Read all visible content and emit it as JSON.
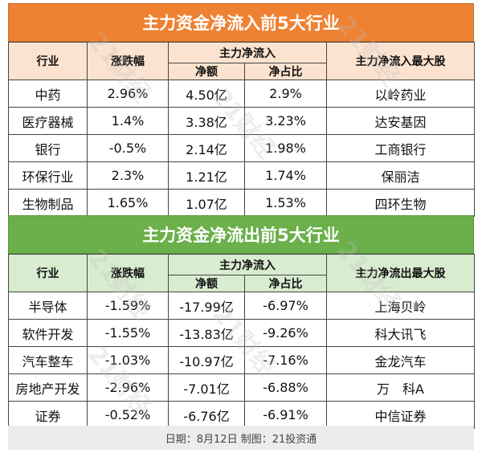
{
  "inflow": {
    "title": "主力资金净流入前5大行业",
    "headers": {
      "industry": "行业",
      "change": "涨跌幅",
      "netflow_group": "主力净流入",
      "amount": "净额",
      "ratio": "净占比",
      "top_stock": "主力净流入最大股"
    },
    "rows": [
      {
        "industry": "中药",
        "change": "2.96%",
        "amount": "4.50亿",
        "ratio": "2.9%",
        "stock": "以岭药业"
      },
      {
        "industry": "医疗器械",
        "change": "1.4%",
        "amount": "3.38亿",
        "ratio": "3.23%",
        "stock": "达安基因"
      },
      {
        "industry": "银行",
        "change": "-0.5%",
        "amount": "2.14亿",
        "ratio": "1.98%",
        "stock": "工商银行"
      },
      {
        "industry": "环保行业",
        "change": "2.3%",
        "amount": "1.21亿",
        "ratio": "1.74%",
        "stock": "保丽洁"
      },
      {
        "industry": "生物制品",
        "change": "1.65%",
        "amount": "1.07亿",
        "ratio": "1.53%",
        "stock": "四环生物"
      }
    ]
  },
  "outflow": {
    "title": "主力资金净流出前5大行业",
    "headers": {
      "industry": "行业",
      "change": "涨跌幅",
      "netflow_group": "主力净流入",
      "amount": "净额",
      "ratio": "净占比",
      "top_stock": "主力净流出最大股"
    },
    "rows": [
      {
        "industry": "半导体",
        "change": "-1.59%",
        "amount": "-17.99亿",
        "ratio": "-6.97%",
        "stock": "上海贝岭"
      },
      {
        "industry": "软件开发",
        "change": "-1.55%",
        "amount": "-13.83亿",
        "ratio": "-9.26%",
        "stock": "科大讯飞"
      },
      {
        "industry": "汽车整车",
        "change": "-1.03%",
        "amount": "-10.97亿",
        "ratio": "-7.16%",
        "stock": "金龙汽车"
      },
      {
        "industry": "房地产开发",
        "change": "-2.96%",
        "amount": "-7.01亿",
        "ratio": "-6.88%",
        "stock": "万　科A"
      },
      {
        "industry": "证券",
        "change": "-0.52%",
        "amount": "-6.76亿",
        "ratio": "-6.91%",
        "stock": "中信证券"
      }
    ]
  },
  "footer": "日期：8月12日 制图：21投资通",
  "watermark": "21财经",
  "colors": {
    "inflow_title_bg": "#ee8232",
    "inflow_header_bg": "#fbe3d0",
    "outflow_title_bg": "#6bb04b",
    "outflow_header_bg": "#d8ecd0",
    "footer_bg": "#ececec"
  }
}
